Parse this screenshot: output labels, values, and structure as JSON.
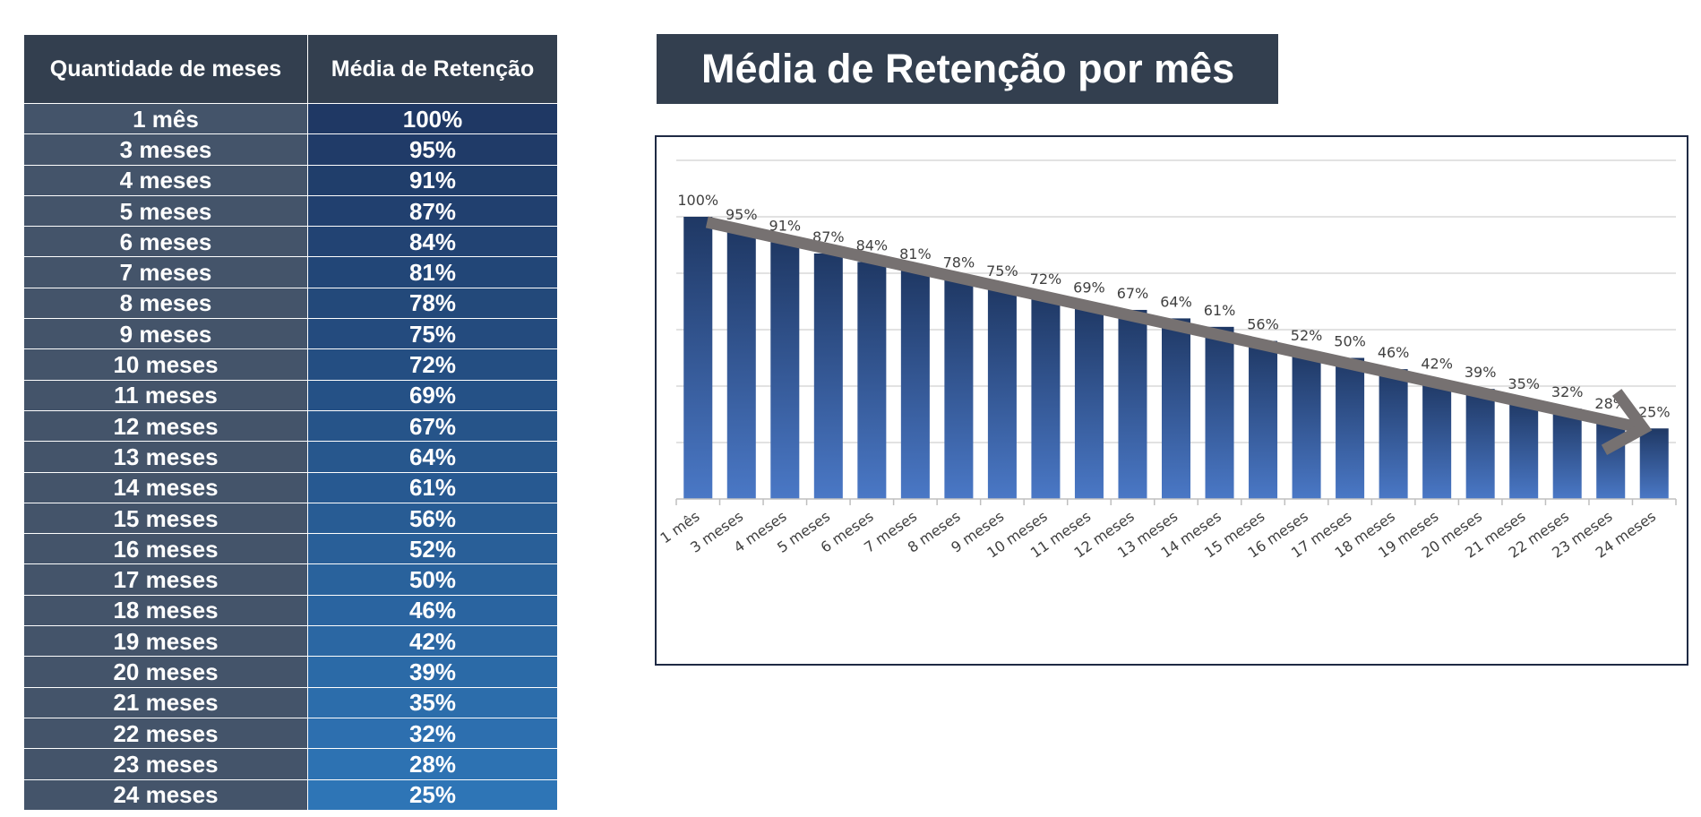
{
  "table": {
    "headers": [
      "Quantidade de meses",
      "Média de Retenção"
    ],
    "rows": [
      [
        "1 mês",
        "100%"
      ],
      [
        "3 meses",
        "95%"
      ],
      [
        "4 meses",
        "91%"
      ],
      [
        "5 meses",
        "87%"
      ],
      [
        "6 meses",
        "84%"
      ],
      [
        "7 meses",
        "81%"
      ],
      [
        "8 meses",
        "78%"
      ],
      [
        "9 meses",
        "75%"
      ],
      [
        "10 meses",
        "72%"
      ],
      [
        "11 meses",
        "69%"
      ],
      [
        "12 meses",
        "67%"
      ],
      [
        "13 meses",
        "64%"
      ],
      [
        "14 meses",
        "61%"
      ],
      [
        "15 meses",
        "56%"
      ],
      [
        "16 meses",
        "52%"
      ],
      [
        "17 meses",
        "50%"
      ],
      [
        "18 meses",
        "46%"
      ],
      [
        "19 meses",
        "42%"
      ],
      [
        "20 meses",
        "39%"
      ],
      [
        "21 meses",
        "35%"
      ],
      [
        "22 meses",
        "32%"
      ],
      [
        "23 meses",
        "28%"
      ],
      [
        "24 meses",
        "25%"
      ]
    ],
    "colors": {
      "header_bg": "#333f4f",
      "month_cell_bg": "#44546a",
      "value_gradient_start": "#1f3864",
      "value_gradient_end": "#2e75b6"
    }
  },
  "chart_title": "Média de Retenção por mês",
  "chart_data": {
    "type": "bar",
    "title": "Média de Retenção por mês",
    "categories": [
      "1 mês",
      "3 meses",
      "4 meses",
      "5 meses",
      "6 meses",
      "7 meses",
      "8 meses",
      "9 meses",
      "10 meses",
      "11 meses",
      "12 meses",
      "13 meses",
      "14 meses",
      "15 meses",
      "16 meses",
      "17 meses",
      "18 meses",
      "19 meses",
      "20 meses",
      "21 meses",
      "22 meses",
      "23 meses",
      "24 meses"
    ],
    "values": [
      100,
      95,
      91,
      87,
      84,
      81,
      78,
      75,
      72,
      69,
      67,
      64,
      61,
      56,
      52,
      50,
      46,
      42,
      39,
      35,
      32,
      28,
      25
    ],
    "data_labels": [
      "100%",
      "95%",
      "91%",
      "87%",
      "84%",
      "81%",
      "78%",
      "75%",
      "72%",
      "69%",
      "67%",
      "64%",
      "61%",
      "56%",
      "52%",
      "50%",
      "46%",
      "42%",
      "39%",
      "35%",
      "32%",
      "28%",
      "25%"
    ],
    "ylim": [
      0,
      120
    ],
    "grid": true,
    "legend": "none",
    "trend_arrow": "down",
    "colors": {
      "bar_top": "#1f3864",
      "bar_bottom": "#4a78c6",
      "arrow": "#767171",
      "frame": "#1f2a44"
    }
  }
}
